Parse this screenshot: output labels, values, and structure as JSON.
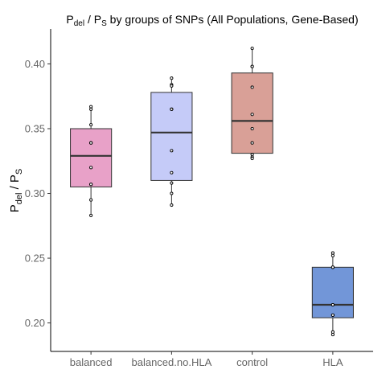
{
  "chart_data": {
    "type": "box",
    "title": {
      "main": "P",
      "sub1": "del",
      "sep": " / P",
      "sub2": "S",
      "rest": " by groups of SNPs (All Populations, Gene-Based)"
    },
    "ylabel": {
      "main": "P",
      "sub1": "del",
      "sep": " / P",
      "sub2": "S"
    },
    "xlabel": "",
    "ylim": [
      0.178,
      0.427
    ],
    "yticks": [
      0.2,
      0.25,
      0.3,
      0.35,
      0.4
    ],
    "ytick_labels": [
      "0.20",
      "0.25",
      "0.30",
      "0.35",
      "0.40"
    ],
    "categories": [
      "balanced",
      "balanced.no.HLA",
      "control",
      "HLA"
    ],
    "grid": false,
    "legend": "none",
    "boxes": [
      {
        "category": "balanced",
        "color": "#e8a1c8",
        "whisker_low": 0.283,
        "q1": 0.305,
        "median": 0.329,
        "q3": 0.35,
        "whisker_high": 0.367,
        "points": [
          0.367,
          0.365,
          0.353,
          0.339,
          0.339,
          0.32,
          0.307,
          0.307,
          0.295,
          0.283
        ]
      },
      {
        "category": "balanced.no.HLA",
        "color": "#c5cbf8",
        "whisker_low": 0.291,
        "q1": 0.31,
        "median": 0.347,
        "q3": 0.378,
        "whisker_high": 0.389,
        "points": [
          0.389,
          0.384,
          0.383,
          0.365,
          0.365,
          0.333,
          0.316,
          0.308,
          0.3,
          0.291
        ]
      },
      {
        "category": "control",
        "color": "#d9a097",
        "whisker_low": 0.327,
        "q1": 0.331,
        "median": 0.356,
        "q3": 0.393,
        "whisker_high": 0.412,
        "points": [
          0.412,
          0.398,
          0.398,
          0.382,
          0.361,
          0.35,
          0.339,
          0.33,
          0.328,
          0.327
        ]
      },
      {
        "category": "HLA",
        "color": "#7296d8",
        "whisker_low": 0.191,
        "q1": 0.204,
        "median": 0.214,
        "q3": 0.243,
        "whisker_high": 0.254,
        "points": [
          0.254,
          0.252,
          0.243,
          0.243,
          0.214,
          0.214,
          0.206,
          0.206,
          0.193,
          0.191
        ]
      }
    ]
  }
}
